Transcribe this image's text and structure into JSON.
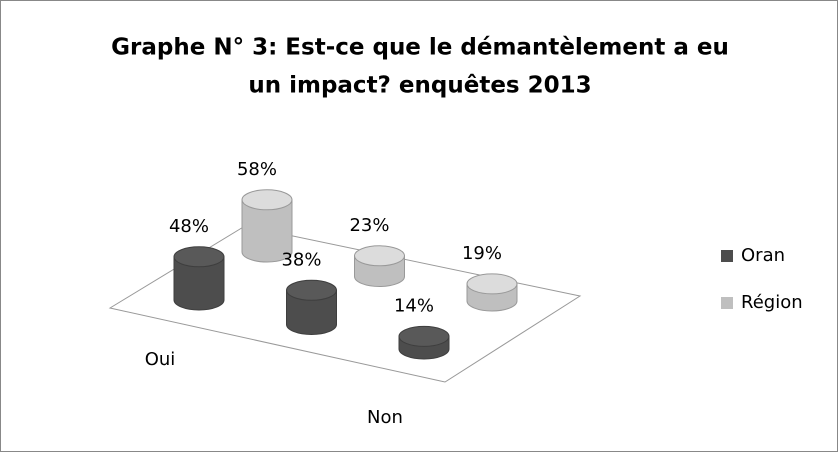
{
  "chart_data": {
    "type": "cylinder3d",
    "title": [
      "Graphe N° 3: Est-ce que le démantèlement a eu",
      "un impact? enquêtes 2013"
    ],
    "categories": [
      "Oui",
      "Non",
      null
    ],
    "series": [
      {
        "name": "Oran",
        "color": "#4d4d4d",
        "values": [
          48,
          38,
          14
        ],
        "value_labels": [
          "48%",
          "38%",
          "14%"
        ]
      },
      {
        "name": "Région",
        "color": "#bfbfbf",
        "values": [
          58,
          23,
          19
        ],
        "value_labels": [
          "58%",
          "23%",
          "19%"
        ]
      }
    ],
    "legend": "right"
  }
}
